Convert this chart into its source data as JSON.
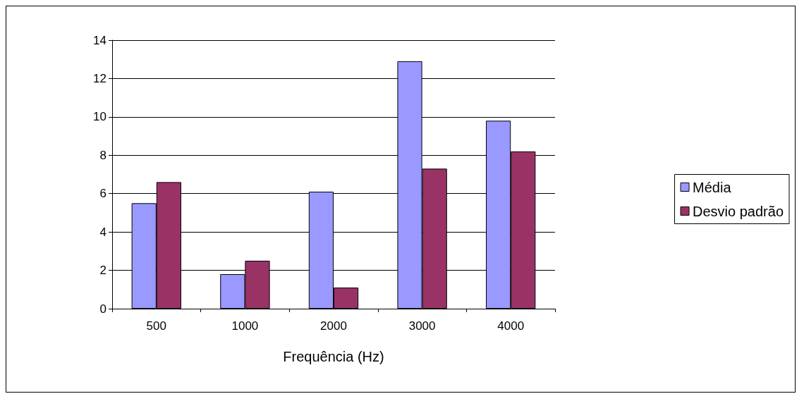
{
  "chart_data": {
    "type": "bar",
    "xlabel": "Frequência (Hz)",
    "categories": [
      "500",
      "1000",
      "2000",
      "3000",
      "4000"
    ],
    "series": [
      {
        "name": "Média",
        "color": "#9999ff",
        "values": [
          5.5,
          1.8,
          6.1,
          12.9,
          9.8
        ]
      },
      {
        "name": "Desvio padrão",
        "color": "#993366",
        "values": [
          6.6,
          2.5,
          1.1,
          7.3,
          8.2
        ]
      }
    ],
    "ylim": [
      0,
      14
    ],
    "yticks": [
      0,
      2,
      4,
      6,
      8,
      10,
      12,
      14
    ],
    "grid": "y",
    "legend": "right"
  }
}
